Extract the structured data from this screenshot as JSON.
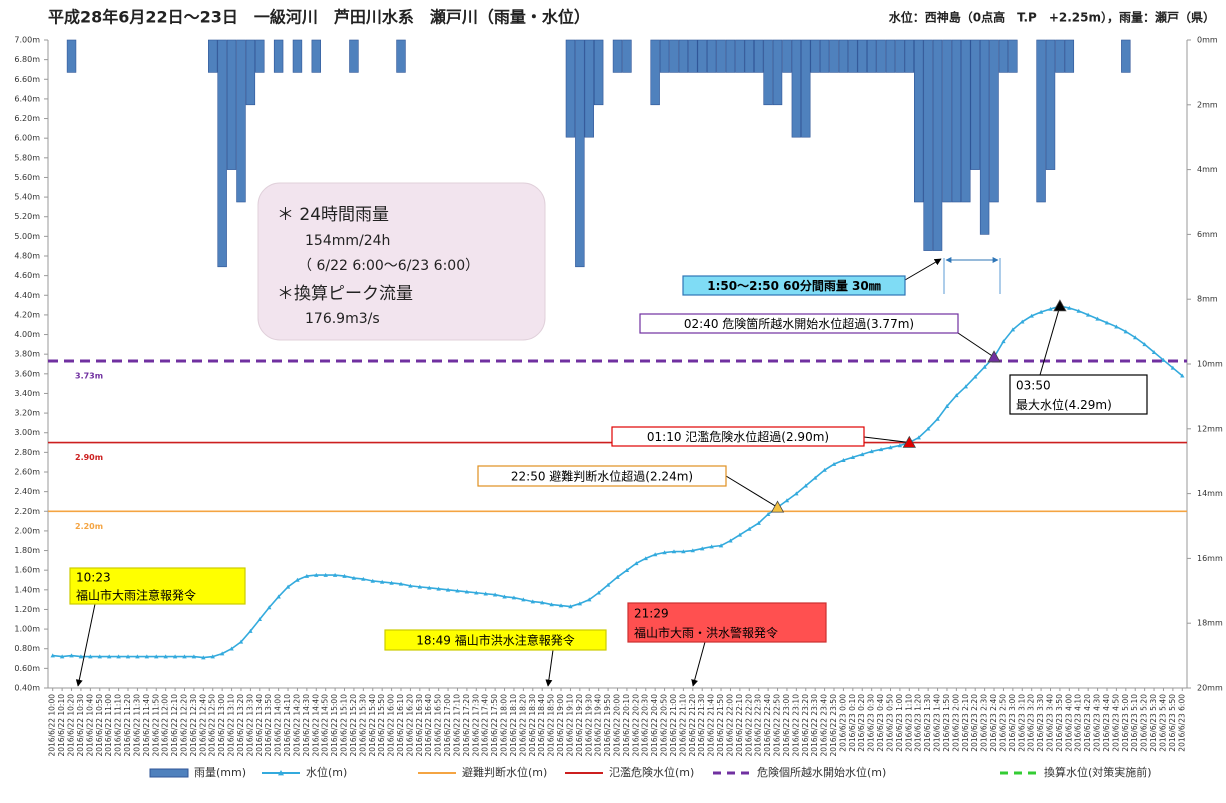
{
  "chart_data": {
    "type": "combo",
    "title": "平成28年6月22日～23日　一級河川　芦田川水系　瀬戸川（雨量・水位）",
    "subtitle": "水位：西神島（0点高　T.P　+2.25m），雨量：瀬戸（県）",
    "categories": [
      "2016/6/22 10:00",
      "2016/6/22 10:10",
      "2016/6/22 10:20",
      "2016/6/22 10:30",
      "2016/6/22 10:40",
      "2016/6/22 10:50",
      "2016/6/22 11:00",
      "2016/6/22 11:10",
      "2016/6/22 11:20",
      "2016/6/22 11:30",
      "2016/6/22 11:40",
      "2016/6/22 11:50",
      "2016/6/22 12:00",
      "2016/6/22 12:10",
      "2016/6/22 12:20",
      "2016/6/22 12:30",
      "2016/6/22 12:40",
      "2016/6/22 12:50",
      "2016/6/22 13:00",
      "2016/6/22 13:10",
      "2016/6/22 13:20",
      "2016/6/22 13:30",
      "2016/6/22 13:40",
      "2016/6/22 13:50",
      "2016/6/22 14:00",
      "2016/6/22 14:10",
      "2016/6/22 14:20",
      "2016/6/22 14:30",
      "2016/6/22 14:40",
      "2016/6/22 14:50",
      "2016/6/22 15:00",
      "2016/6/22 15:10",
      "2016/6/22 15:20",
      "2016/6/22 15:30",
      "2016/6/22 15:40",
      "2016/6/22 15:50",
      "2016/6/22 16:00",
      "2016/6/22 16:10",
      "2016/6/22 16:20",
      "2016/6/22 16:30",
      "2016/6/22 16:40",
      "2016/6/22 16:50",
      "2016/6/22 17:00",
      "2016/6/22 17:10",
      "2016/6/22 17:20",
      "2016/6/22 17:30",
      "2016/6/22 17:40",
      "2016/6/22 17:50",
      "2016/6/22 18:00",
      "2016/6/22 18:10",
      "2016/6/22 18:20",
      "2016/6/22 18:30",
      "2016/6/22 18:40",
      "2016/6/22 18:50",
      "2016/6/22 19:00",
      "2016/6/22 19:10",
      "2016/6/22 19:20",
      "2016/6/22 19:30",
      "2016/6/22 19:40",
      "2016/6/22 19:50",
      "2016/6/22 20:00",
      "2016/6/22 20:10",
      "2016/6/22 20:20",
      "2016/6/22 20:30",
      "2016/6/22 20:40",
      "2016/6/22 20:50",
      "2016/6/22 21:00",
      "2016/6/22 21:10",
      "2016/6/22 21:20",
      "2016/6/22 21:30",
      "2016/6/22 21:40",
      "2016/6/22 21:50",
      "2016/6/22 22:00",
      "2016/6/22 22:10",
      "2016/6/22 22:20",
      "2016/6/22 22:30",
      "2016/6/22 22:40",
      "2016/6/22 22:50",
      "2016/6/22 23:00",
      "2016/6/22 23:10",
      "2016/6/22 23:20",
      "2016/6/22 23:30",
      "2016/6/22 23:40",
      "2016/6/22 23:50",
      "2016/6/23 0:00",
      "2016/6/23 0:10",
      "2016/6/23 0:20",
      "2016/6/23 0:30",
      "2016/6/23 0:40",
      "2016/6/23 0:50",
      "2016/6/23 1:00",
      "2016/6/23 1:10",
      "2016/6/23 1:20",
      "2016/6/23 1:30",
      "2016/6/23 1:40",
      "2016/6/23 1:50",
      "2016/6/23 2:00",
      "2016/6/23 2:10",
      "2016/6/23 2:20",
      "2016/6/23 2:30",
      "2016/6/23 2:40",
      "2016/6/23 2:50",
      "2016/6/23 3:00",
      "2016/6/23 3:10",
      "2016/6/23 3:20",
      "2016/6/23 3:30",
      "2016/6/23 3:40",
      "2016/6/23 3:50",
      "2016/6/23 4:00",
      "2016/6/23 4:10",
      "2016/6/23 4:20",
      "2016/6/23 4:30",
      "2016/6/23 4:40",
      "2016/6/23 4:50",
      "2016/6/23 5:00",
      "2016/6/23 5:10",
      "2016/6/23 5:20",
      "2016/6/23 5:30",
      "2016/6/23 5:40",
      "2016/6/23 5:50",
      "2016/6/23 6:00"
    ],
    "series": [
      {
        "name": "雨量(mm)",
        "type": "bar",
        "axis": "y2",
        "color": "#4f81bd",
        "values": [
          0,
          0,
          1,
          0,
          0,
          0,
          0,
          0,
          0,
          0,
          0,
          0,
          0,
          0,
          0,
          0,
          0,
          1,
          7,
          4,
          5,
          2,
          1,
          0,
          1,
          0,
          1,
          0,
          1,
          0,
          0,
          0,
          1,
          0,
          0,
          0,
          0,
          1,
          0,
          0,
          0,
          0,
          0,
          0,
          0,
          0,
          0,
          0,
          0,
          0,
          0,
          0,
          0,
          0,
          0,
          3,
          7,
          3,
          2,
          0,
          1,
          1,
          0,
          0,
          2,
          1,
          1,
          1,
          1,
          1,
          1,
          1,
          1,
          1,
          1,
          1,
          2,
          2,
          1,
          3,
          3,
          1,
          1,
          1,
          1,
          1,
          1,
          1,
          1,
          1,
          1,
          1,
          5,
          6.5,
          6.5,
          5,
          5,
          5,
          4,
          6,
          5,
          1,
          1,
          0,
          0,
          5,
          4,
          1,
          1,
          0,
          0,
          0,
          0,
          0,
          1,
          0,
          0,
          0,
          0,
          0,
          0
        ]
      },
      {
        "name": "水位(m)",
        "type": "line",
        "color": "#33aadd",
        "values": [
          0.73,
          0.72,
          0.73,
          0.72,
          0.72,
          0.72,
          0.72,
          0.72,
          0.72,
          0.72,
          0.72,
          0.72,
          0.72,
          0.72,
          0.72,
          0.72,
          0.71,
          0.72,
          0.75,
          0.8,
          0.87,
          0.98,
          1.1,
          1.22,
          1.33,
          1.43,
          1.5,
          1.54,
          1.55,
          1.55,
          1.55,
          1.54,
          1.52,
          1.51,
          1.49,
          1.48,
          1.47,
          1.46,
          1.44,
          1.43,
          1.42,
          1.41,
          1.4,
          1.39,
          1.38,
          1.37,
          1.36,
          1.35,
          1.33,
          1.32,
          1.3,
          1.28,
          1.27,
          1.25,
          1.24,
          1.23,
          1.26,
          1.3,
          1.37,
          1.45,
          1.53,
          1.6,
          1.67,
          1.72,
          1.76,
          1.78,
          1.79,
          1.79,
          1.8,
          1.82,
          1.84,
          1.85,
          1.9,
          1.96,
          2.02,
          2.08,
          2.17,
          2.24,
          2.31,
          2.38,
          2.46,
          2.54,
          2.62,
          2.68,
          2.72,
          2.75,
          2.78,
          2.81,
          2.83,
          2.85,
          2.87,
          2.9,
          2.95,
          3.04,
          3.14,
          3.27,
          3.38,
          3.47,
          3.57,
          3.67,
          3.77,
          3.93,
          4.05,
          4.13,
          4.19,
          4.23,
          4.26,
          4.29,
          4.27,
          4.24,
          4.2,
          4.16,
          4.12,
          4.08,
          4.03,
          3.97,
          3.9,
          3.82,
          3.74,
          3.66,
          3.58
        ]
      }
    ],
    "reference_lines": [
      {
        "name": "避難判断水位(m)",
        "value": 2.2,
        "label": "2.20m",
        "color": "#f4a442",
        "dash": false
      },
      {
        "name": "氾濫危険水位(m)",
        "value": 2.9,
        "label": "2.90m",
        "color": "#cc1f1f",
        "dash": false
      },
      {
        "name": "危険個所越水開始水位(m)",
        "value": 3.73,
        "label": "3.73m",
        "color": "#7030a0",
        "dash": true
      },
      {
        "name": "換算水位(対策実施前)",
        "value": null,
        "color": "#33cc33",
        "dash": true
      }
    ],
    "ylim": [
      0.4,
      7.0
    ],
    "yticks": [
      {
        "value": 0.4,
        "label": "0.40m"
      },
      {
        "value": 0.6,
        "label": "0.60m"
      },
      {
        "value": 0.8,
        "label": "0.80m"
      },
      {
        "value": 1.0,
        "label": "1.00m"
      },
      {
        "value": 1.2,
        "label": "1.20m"
      },
      {
        "value": 1.4,
        "label": "1.40m"
      },
      {
        "value": 1.6,
        "label": "1.60m"
      },
      {
        "value": 1.8,
        "label": "1.80m"
      },
      {
        "value": 2.0,
        "label": "2.00m"
      },
      {
        "value": 2.2,
        "label": "2.20m"
      },
      {
        "value": 2.4,
        "label": "2.40m"
      },
      {
        "value": 2.6,
        "label": "2.60m"
      },
      {
        "value": 2.8,
        "label": "2.80m"
      },
      {
        "value": 3.0,
        "label": "3.00m"
      },
      {
        "value": 3.2,
        "label": "3.20m"
      },
      {
        "value": 3.4,
        "label": "3.40m"
      },
      {
        "value": 3.6,
        "label": "3.60m"
      },
      {
        "value": 3.8,
        "label": "3.80m"
      },
      {
        "value": 4.0,
        "label": "4.00m"
      },
      {
        "value": 4.2,
        "label": "4.20m"
      },
      {
        "value": 4.4,
        "label": "4.40m"
      },
      {
        "value": 4.6,
        "label": "4.60m"
      },
      {
        "value": 4.8,
        "label": "4.80m"
      },
      {
        "value": 5.0,
        "label": "5.00m"
      },
      {
        "value": 5.2,
        "label": "5.20m"
      },
      {
        "value": 5.4,
        "label": "5.40m"
      },
      {
        "value": 5.6,
        "label": "5.60m"
      },
      {
        "value": 5.8,
        "label": "5.80m"
      },
      {
        "value": 6.0,
        "label": "6.00m"
      },
      {
        "value": 6.2,
        "label": "6.20m"
      },
      {
        "value": 6.4,
        "label": "6.40m"
      },
      {
        "value": 6.6,
        "label": "6.60m"
      },
      {
        "value": 6.8,
        "label": "6.80m"
      },
      {
        "value": 7.0,
        "label": "7.00m"
      }
    ],
    "y2lim": [
      0,
      20
    ],
    "y2_inverted": true,
    "y2ticks": [
      {
        "value": 0,
        "label": "0mm"
      },
      {
        "value": 2,
        "label": "2mm"
      },
      {
        "value": 4,
        "label": "4mm"
      },
      {
        "value": 6,
        "label": "6mm"
      },
      {
        "value": 8,
        "label": "8mm"
      },
      {
        "value": 10,
        "label": "10mm"
      },
      {
        "value": 12,
        "label": "12mm"
      },
      {
        "value": 14,
        "label": "14mm"
      },
      {
        "value": 16,
        "label": "16mm"
      },
      {
        "value": 18,
        "label": "18mm"
      },
      {
        "value": 20,
        "label": "20mm"
      }
    ],
    "grid": false,
    "legend": "bottom",
    "note": {
      "lines": [
        "＊ 24時間雨量",
        "154mm/24h",
        "（ 6/22 6:00～6/23 6:00）",
        "＊換算ピーク流量",
        "176.9m3/s"
      ]
    },
    "annotations": [
      {
        "lines": [
          "1:50～2:50 60分間雨量 30㎜"
        ],
        "fill": "#7fdcf5",
        "border": "#2e75b6"
      },
      {
        "lines": [
          "02:40 危険箇所越水開始水位超過(3.77m)"
        ],
        "fill": "#ffffff",
        "border": "#7030a0",
        "index": 100,
        "point_color": "#7030a0"
      },
      {
        "lines": [
          "01:10 氾濫危険水位超過(2.90m)"
        ],
        "fill": "#ffffff",
        "border": "#e00000",
        "index": 91,
        "point_color": "#e00000"
      },
      {
        "lines": [
          "22:50 避難判断水位超過(2.24m)"
        ],
        "fill": "#ffffff",
        "border": "#e09020",
        "index": 77,
        "point_color": "#f5c242"
      },
      {
        "lines": [
          "03:50",
          "最大水位(4.29m)"
        ],
        "fill": "#ffffff",
        "border": "#000000",
        "index": 107,
        "point_color": "#000000"
      },
      {
        "lines": [
          "10:23",
          "福山市大雨注意報発令"
        ],
        "fill": "#ffff00",
        "border": "#cccc00"
      },
      {
        "lines": [
          "18:49 福山市洪水注意報発令"
        ],
        "fill": "#ffff00",
        "border": "#cccc00"
      },
      {
        "lines": [
          "21:29",
          "福山市大雨・洪水警報発令"
        ],
        "fill": "#ff5050",
        "border": "#cc3030"
      }
    ]
  }
}
